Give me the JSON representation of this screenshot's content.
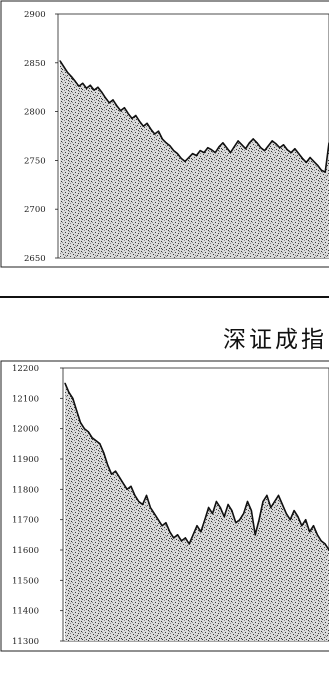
{
  "chart_data": [
    {
      "type": "area",
      "title": "",
      "xlabel": "",
      "ylabel": "",
      "yticks": [
        "2900",
        "2850",
        "2800",
        "2750",
        "2700",
        "2650"
      ],
      "ylim": [
        2650,
        2900
      ],
      "grid": false,
      "legend": "none",
      "values": [
        2852,
        2846,
        2840,
        2836,
        2831,
        2826,
        2829,
        2824,
        2827,
        2822,
        2825,
        2820,
        2814,
        2809,
        2812,
        2806,
        2801,
        2804,
        2798,
        2793,
        2796,
        2790,
        2785,
        2788,
        2782,
        2777,
        2780,
        2772,
        2768,
        2765,
        2760,
        2757,
        2752,
        2749,
        2753,
        2757,
        2755,
        2760,
        2758,
        2763,
        2761,
        2758,
        2764,
        2768,
        2763,
        2758,
        2764,
        2770,
        2766,
        2762,
        2768,
        2772,
        2768,
        2763,
        2760,
        2765,
        2770,
        2767,
        2763,
        2766,
        2761,
        2758,
        2762,
        2757,
        2752,
        2748,
        2753,
        2749,
        2745,
        2740,
        2738,
        2768
      ]
    },
    {
      "type": "area",
      "title": "深证成指",
      "xlabel": "",
      "ylabel": "",
      "yticks": [
        "12200",
        "12100",
        "12000",
        "11900",
        "11800",
        "11700",
        "11600",
        "11500",
        "11400",
        "11300"
      ],
      "ylim": [
        11300,
        12200
      ],
      "grid": false,
      "legend": "none",
      "values": [
        12150,
        12120,
        12100,
        12060,
        12020,
        12000,
        11990,
        11970,
        11960,
        11950,
        11920,
        11880,
        11850,
        11860,
        11840,
        11820,
        11800,
        11810,
        11780,
        11760,
        11750,
        11780,
        11740,
        11720,
        11700,
        11680,
        11690,
        11660,
        11640,
        11650,
        11630,
        11640,
        11620,
        11650,
        11680,
        11660,
        11700,
        11740,
        11720,
        11760,
        11740,
        11710,
        11750,
        11730,
        11690,
        11700,
        11720,
        11760,
        11730,
        11650,
        11700,
        11760,
        11780,
        11740,
        11760,
        11780,
        11750,
        11720,
        11700,
        11730,
        11710,
        11680,
        11700,
        11660,
        11680,
        11650,
        11630,
        11620,
        11600
      ]
    }
  ]
}
